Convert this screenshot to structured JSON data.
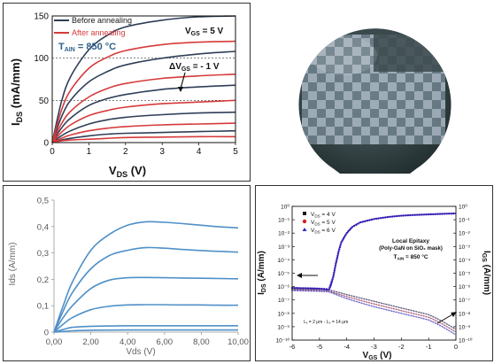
{
  "chart_data": [
    {
      "type": "line",
      "xlabel_main": "V",
      "xlabel_sub": "DS",
      "xlabel_unit": " (V)",
      "ylabel_main": "I",
      "ylabel_sub": "DS",
      "ylabel_unit": " (mA/mm)",
      "xlim": [
        0,
        5
      ],
      "ylim": [
        0,
        150
      ],
      "xticks": [
        "0",
        "1",
        "2",
        "3",
        "4",
        "5"
      ],
      "yticks": [
        "0",
        "50",
        "100",
        "150"
      ],
      "grid": "dashed-horizontal",
      "legend": {
        "placement": "top-left",
        "items": [
          {
            "label": "Before annealing",
            "color": "#2f3e57"
          },
          {
            "label": "After annealing",
            "color": "#d63a3a"
          }
        ]
      },
      "annotations": {
        "tain_main": "T",
        "tain_sub": "AIN",
        "tain_rest": " = 850 °C",
        "vgs_main": "V",
        "vgs_sub": "GS",
        "vgs_rest": " = 5 V",
        "dvgs_main": "ΔV",
        "dvgs_sub": "GS",
        "dvgs_rest": " = - 1 V"
      },
      "series": [
        {
          "group": "Before annealing",
          "values": [
            [
              0,
              0
            ],
            [
              0.25,
              48
            ],
            [
              0.5,
              78
            ],
            [
              1,
              110
            ],
            [
              1.5,
              127
            ],
            [
              2,
              137
            ],
            [
              3,
              145
            ],
            [
              4,
              149
            ],
            [
              5,
              150
            ]
          ]
        },
        {
          "group": "Before annealing",
          "values": [
            [
              0,
              0
            ],
            [
              0.25,
              30
            ],
            [
              0.5,
              50
            ],
            [
              1,
              72
            ],
            [
              1.5,
              84
            ],
            [
              2,
              92
            ],
            [
              3,
              100
            ],
            [
              4,
              105
            ],
            [
              5,
              108
            ]
          ]
        },
        {
          "group": "Before annealing",
          "values": [
            [
              0,
              0
            ],
            [
              0.25,
              17
            ],
            [
              0.5,
              29
            ],
            [
              1,
              44
            ],
            [
              1.5,
              52
            ],
            [
              2,
              57
            ],
            [
              3,
              63
            ],
            [
              4,
              66
            ],
            [
              5,
              68
            ]
          ]
        },
        {
          "group": "Before annealing",
          "values": [
            [
              0,
              0
            ],
            [
              0.25,
              8
            ],
            [
              0.5,
              14
            ],
            [
              1,
              22
            ],
            [
              1.5,
              27
            ],
            [
              2,
              30
            ],
            [
              3,
              33
            ],
            [
              4,
              35
            ],
            [
              5,
              36
            ]
          ]
        },
        {
          "group": "Before annealing",
          "values": [
            [
              0,
              0
            ],
            [
              0.25,
              3
            ],
            [
              0.5,
              5
            ],
            [
              1,
              8
            ],
            [
              1.5,
              10
            ],
            [
              2,
              11
            ],
            [
              3,
              12
            ],
            [
              4,
              13
            ],
            [
              5,
              14
            ]
          ]
        },
        {
          "group": "After annealing",
          "values": [
            [
              0,
              0
            ],
            [
              0.25,
              38
            ],
            [
              0.5,
              62
            ],
            [
              1,
              88
            ],
            [
              1.5,
              101
            ],
            [
              2,
              109
            ],
            [
              3,
              116
            ],
            [
              4,
              119
            ],
            [
              5,
              120
            ]
          ]
        },
        {
          "group": "After annealing",
          "values": [
            [
              0,
              0
            ],
            [
              0.25,
              22
            ],
            [
              0.5,
              37
            ],
            [
              1,
              54
            ],
            [
              1.5,
              64
            ],
            [
              2,
              70
            ],
            [
              3,
              76
            ],
            [
              4,
              79
            ],
            [
              5,
              81
            ]
          ]
        },
        {
          "group": "After annealing",
          "values": [
            [
              0,
              0
            ],
            [
              0.25,
              12
            ],
            [
              0.5,
              21
            ],
            [
              1,
              32
            ],
            [
              1.5,
              38
            ],
            [
              2,
              42
            ],
            [
              3,
              46
            ],
            [
              4,
              48
            ],
            [
              5,
              50
            ]
          ]
        },
        {
          "group": "After annealing",
          "values": [
            [
              0,
              0
            ],
            [
              0.25,
              5
            ],
            [
              0.5,
              9
            ],
            [
              1,
              14
            ],
            [
              1.5,
              17
            ],
            [
              2,
              19
            ],
            [
              3,
              21
            ],
            [
              4,
              22
            ],
            [
              5,
              23
            ]
          ]
        },
        {
          "group": "After annealing",
          "values": [
            [
              0,
              0
            ],
            [
              0.25,
              2
            ],
            [
              0.5,
              3
            ],
            [
              1,
              4
            ],
            [
              1.5,
              5
            ],
            [
              2,
              6
            ],
            [
              3,
              6.5
            ],
            [
              4,
              7
            ],
            [
              5,
              7
            ]
          ]
        }
      ]
    },
    {
      "type": "line",
      "xlabel": "Vds (V)",
      "ylabel": "Ids (A/mm)",
      "xlim": [
        0,
        10
      ],
      "ylim": [
        0,
        0.5
      ],
      "xticks": [
        "0,00",
        "2,00",
        "4,00",
        "6,00",
        "8,00",
        "10,00"
      ],
      "yticks": [
        "0",
        "0,1",
        "0,2",
        "0,3",
        "0,4",
        "0,5"
      ],
      "grid": "none",
      "series": [
        {
          "values": [
            [
              0,
              0
            ],
            [
              0.5,
              0.1
            ],
            [
              1,
              0.19
            ],
            [
              2,
              0.31
            ],
            [
              3,
              0.37
            ],
            [
              4,
              0.405
            ],
            [
              5,
              0.418
            ],
            [
              6,
              0.416
            ],
            [
              7,
              0.411
            ],
            [
              8,
              0.405
            ],
            [
              9,
              0.399
            ],
            [
              10,
              0.395
            ]
          ]
        },
        {
          "values": [
            [
              0,
              0
            ],
            [
              0.5,
              0.08
            ],
            [
              1,
              0.15
            ],
            [
              2,
              0.24
            ],
            [
              3,
              0.29
            ],
            [
              4,
              0.31
            ],
            [
              5,
              0.32
            ],
            [
              6,
              0.318
            ],
            [
              7,
              0.313
            ],
            [
              8,
              0.309
            ],
            [
              9,
              0.306
            ],
            [
              10,
              0.303
            ]
          ]
        },
        {
          "values": [
            [
              0,
              0
            ],
            [
              0.5,
              0.055
            ],
            [
              1,
              0.1
            ],
            [
              2,
              0.165
            ],
            [
              3,
              0.197
            ],
            [
              4,
              0.206
            ],
            [
              5,
              0.207
            ],
            [
              6,
              0.206
            ],
            [
              7,
              0.205
            ],
            [
              8,
              0.204
            ],
            [
              9,
              0.203
            ],
            [
              10,
              0.202
            ]
          ]
        },
        {
          "values": [
            [
              0,
              0
            ],
            [
              0.5,
              0.03
            ],
            [
              1,
              0.055
            ],
            [
              2,
              0.085
            ],
            [
              3,
              0.098
            ],
            [
              4,
              0.103
            ],
            [
              5,
              0.104
            ],
            [
              6,
              0.104
            ],
            [
              7,
              0.103
            ],
            [
              8,
              0.103
            ],
            [
              9,
              0.102
            ],
            [
              10,
              0.102
            ]
          ]
        },
        {
          "values": [
            [
              0,
              0
            ],
            [
              0.5,
              0.01
            ],
            [
              1,
              0.018
            ],
            [
              2,
              0.022
            ],
            [
              3,
              0.023
            ],
            [
              4,
              0.024
            ],
            [
              5,
              0.024
            ],
            [
              6,
              0.024
            ],
            [
              7,
              0.024
            ],
            [
              8,
              0.024
            ],
            [
              9,
              0.024
            ],
            [
              10,
              0.024
            ]
          ]
        },
        {
          "values": [
            [
              0,
              0
            ],
            [
              1,
              0.005
            ],
            [
              2,
              0.007
            ],
            [
              4,
              0.008
            ],
            [
              10,
              0.008
            ]
          ]
        }
      ]
    },
    {
      "type": "line",
      "scale": "log",
      "xlabel_main": "V",
      "xlabel_sub": "GS",
      "xlabel_unit": " (V)",
      "ylabel_main": "I",
      "ylabel_sub": "DS",
      "ylabel_unit": " (A/mm)",
      "y2label_main": "I",
      "y2label_sub": "GS",
      "y2label_unit": " (A/mm)",
      "xlim": [
        -6,
        0
      ],
      "ylim_exp": [
        -10,
        0
      ],
      "xticks": [
        "-6",
        "-5",
        "-4",
        "-3",
        "-2",
        "-1",
        "0"
      ],
      "yticks": [
        "10⁻¹⁰",
        "10⁻⁹",
        "10⁻⁸",
        "10⁻⁷",
        "10⁻⁶",
        "10⁻⁵",
        "10⁻⁴",
        "10⁻³",
        "10⁻²",
        "10⁻¹",
        "10⁰"
      ],
      "legend": {
        "placement": "top-left",
        "items": [
          {
            "label_main": "V",
            "label_sub": "DS",
            "label_rest": " = 4 V",
            "color": "#1a1a1a",
            "marker": "square"
          },
          {
            "label_main": "V",
            "label_sub": "DS",
            "label_rest": " = 5 V",
            "color": "#d32020",
            "marker": "circle"
          },
          {
            "label_main": "V",
            "label_sub": "DS",
            "label_rest": " = 6 V",
            "color": "#2a2ad0",
            "marker": "triangle"
          }
        ]
      },
      "annotations": {
        "title_line1": "Local Epitaxy",
        "title_line2": "(Poly-GaN on SiO₂ mask)",
        "tain_main": "T",
        "tain_sub": "AIN",
        "tain_rest": " = 850 °C",
        "geom_text": "Lₓ = 2 μm - L₉ = 14 μm"
      },
      "ids_log": [
        [
          -6,
          -6.1
        ],
        [
          -5,
          -6.15
        ],
        [
          -4.65,
          -6.2
        ],
        [
          -4.5,
          -5.3
        ],
        [
          -4.4,
          -4.3
        ],
        [
          -4.3,
          -3.4
        ],
        [
          -4.2,
          -2.7
        ],
        [
          -4.0,
          -2.0
        ],
        [
          -3.8,
          -1.55
        ],
        [
          -3.5,
          -1.2
        ],
        [
          -3.0,
          -0.95
        ],
        [
          -2.5,
          -0.8
        ],
        [
          -2.0,
          -0.7
        ],
        [
          -1.5,
          -0.64
        ],
        [
          -1.0,
          -0.6
        ],
        [
          -0.5,
          -0.56
        ],
        [
          0,
          -0.53
        ]
      ],
      "igs_log": [
        [
          [
            -6,
            -6.2
          ],
          [
            -5,
            -6.22
          ],
          [
            -4.65,
            -6.25
          ],
          [
            -4,
            -6.6
          ],
          [
            -3,
            -7.1
          ],
          [
            -2,
            -7.6
          ],
          [
            -1,
            -8.1
          ],
          [
            -0.5,
            -8.6
          ],
          [
            0,
            -9.2
          ]
        ],
        [
          [
            -6,
            -6.25
          ],
          [
            -5,
            -6.3
          ],
          [
            -4.65,
            -6.35
          ],
          [
            -4,
            -6.75
          ],
          [
            -3,
            -7.3
          ],
          [
            -2,
            -7.8
          ],
          [
            -1,
            -8.3
          ],
          [
            -0.5,
            -8.8
          ],
          [
            0,
            -9.4
          ]
        ],
        [
          [
            -6,
            -6.3
          ],
          [
            -5,
            -6.35
          ],
          [
            -4.65,
            -6.4
          ],
          [
            -4,
            -6.9
          ],
          [
            -3,
            -7.5
          ],
          [
            -2,
            -8.0
          ],
          [
            -1,
            -8.5
          ],
          [
            -0.5,
            -9.0
          ],
          [
            0,
            -9.6
          ]
        ]
      ]
    }
  ],
  "photo": {
    "description_free": "",
    "bg_color": "#ffffff",
    "wafer_color": "#2f3c3e"
  }
}
